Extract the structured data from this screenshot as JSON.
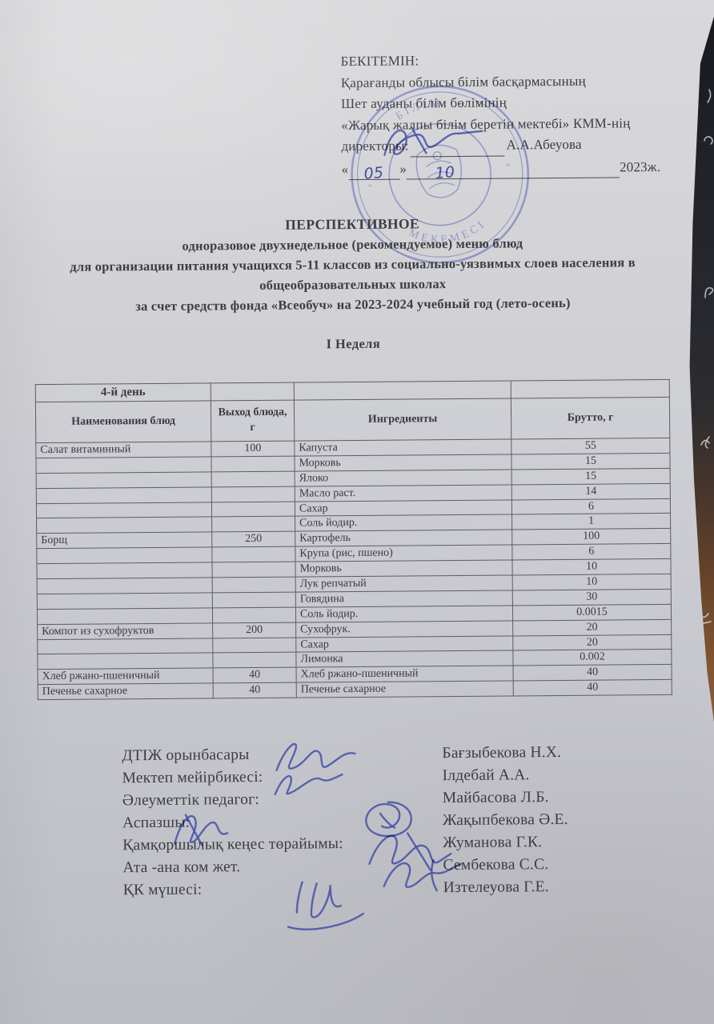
{
  "approval": {
    "title": "БЕКІТЕМІН:",
    "line1": "Қарағанды облысы білім басқармасының",
    "line2": "Шет ауданы білім бөлімінің",
    "line3": "«Жарық жалпы білім беретін мектебі» КММ-нің",
    "director_label": "директоры:",
    "director_name": "А.А.Абеуова",
    "date_open": "«",
    "date_close": "»",
    "date_day": "05",
    "date_month": "10",
    "date_year": "2023ж."
  },
  "stamp": {
    "fragment_top": "БІЛІМ",
    "fragment_bottom": "МЕКЕМЕСІ",
    "ink_color": "#4a55b2"
  },
  "doc_title": {
    "line1": "ПЕРСПЕКТИВНОЕ",
    "line2": "одноразовое двухнедельное (рекомендуемое) меню блюд",
    "line3": "для организации питания учащихся 5-11 классов из социально-уязвимых слоев населения в",
    "line4": "общеобразовательных школах",
    "line5": "за счет средств фонда «Всеобуч» на 2023-2024 учебный год (лето-осень)"
  },
  "week_heading": "І Неделя",
  "menu_table": {
    "day_header": "4-й день",
    "columns": [
      "Наименования блюд",
      "Выход блюда, г",
      "Ингредиенты",
      "Брутто, г"
    ],
    "rows": [
      {
        "dish": "Салат витаминный",
        "yield": "100",
        "ingredient": "Капуста",
        "gross": "55"
      },
      {
        "dish": "",
        "yield": "",
        "ingredient": "Морковь",
        "gross": "15"
      },
      {
        "dish": "",
        "yield": "",
        "ingredient": "Ялоко",
        "gross": "15"
      },
      {
        "dish": "",
        "yield": "",
        "ingredient": "Масло раст.",
        "gross": "14"
      },
      {
        "dish": "",
        "yield": "",
        "ingredient": "Сахар",
        "gross": "6"
      },
      {
        "dish": "",
        "yield": "",
        "ingredient": "Соль йодир.",
        "gross": "1"
      },
      {
        "dish": "Борщ",
        "yield": "250",
        "ingredient": "Картофель",
        "gross": "100"
      },
      {
        "dish": "",
        "yield": "",
        "ingredient": "Крупа (рис, пшено)",
        "gross": "6"
      },
      {
        "dish": "",
        "yield": "",
        "ingredient": "Морковь",
        "gross": "10"
      },
      {
        "dish": "",
        "yield": "",
        "ingredient": "Лук репчатый",
        "gross": "10"
      },
      {
        "dish": "",
        "yield": "",
        "ingredient": "Говядина",
        "gross": "30"
      },
      {
        "dish": "",
        "yield": "",
        "ingredient": "Соль йодир.",
        "gross": "0.0015"
      },
      {
        "dish": "Компот из сухофруктов",
        "yield": "200",
        "ingredient": "Сухофрук.",
        "gross": "20"
      },
      {
        "dish": "",
        "yield": "",
        "ingredient": "Сахар",
        "gross": "20"
      },
      {
        "dish": "",
        "yield": "",
        "ingredient": "Лимонка",
        "gross": "0.002"
      },
      {
        "dish": "Хлеб ржано-пшеничный",
        "yield": "40",
        "ingredient": "Хлеб ржано-пшеничный",
        "gross": "40"
      },
      {
        "dish": "Печенье сахарное",
        "yield": "40",
        "ingredient": "Печенье сахарное",
        "gross": "40"
      }
    ]
  },
  "signatories": [
    {
      "role": "ДТІЖ орынбасары",
      "name": "Бағзыбекова Н.Х."
    },
    {
      "role": "Мектеп мейірбикесі:",
      "name": "Ілдебай А.А."
    },
    {
      "role": "Әлеуметтік педагог:",
      "name": "Майбасова Л.Б."
    },
    {
      "role": "Аспазшы:",
      "name": "Жақыпбекова Ә.Е."
    },
    {
      "role": "Қамқоршылық кеңес төрайымы:",
      "name": "Жуманова Г.К."
    },
    {
      "role": "Ата -ана ком  жет.",
      "name": "Сембекова С.С."
    },
    {
      "role": "ҚК мүшесі:",
      "name": "Изтелеуова Г.Е."
    }
  ],
  "colors": {
    "paper": "#cdced3",
    "text": "#3d3c42",
    "table_border": "#5d5c63",
    "ink_blue": "#4550a8",
    "backdrop_dark": "#212329",
    "desk_brown": "#7f5431"
  }
}
